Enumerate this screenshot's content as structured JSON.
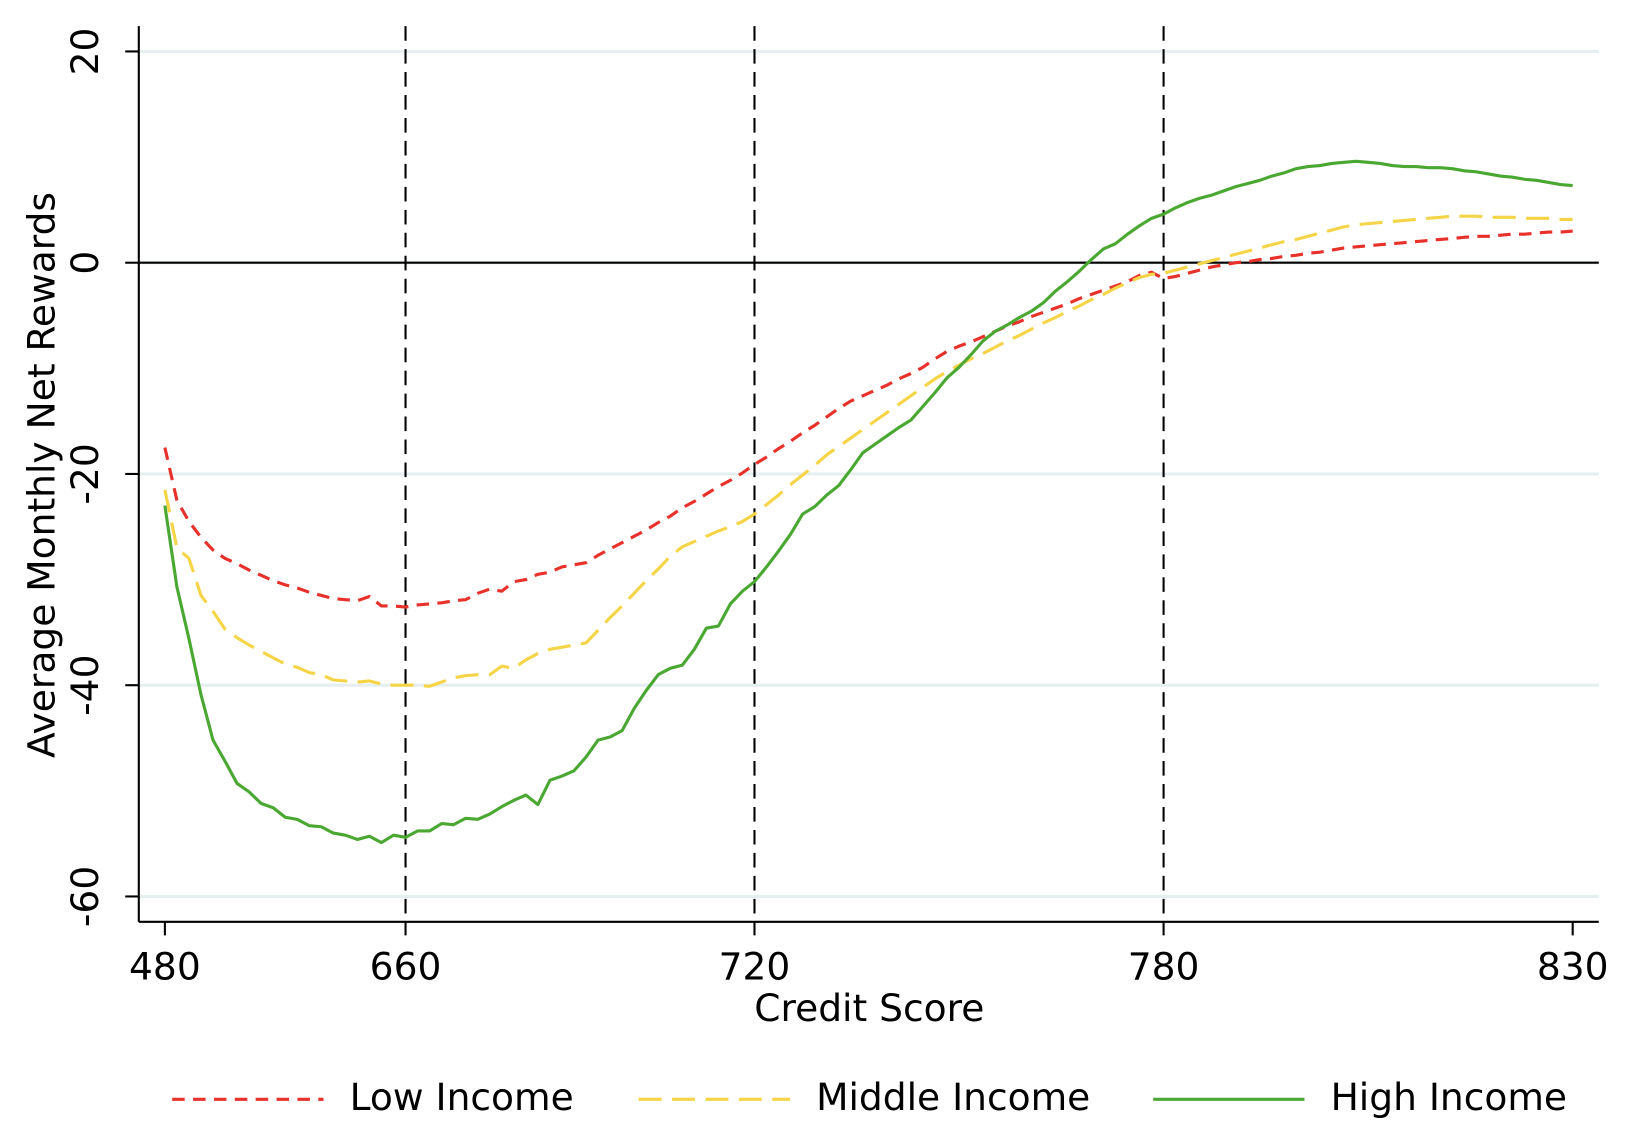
{
  "chart_data": {
    "type": "line",
    "xlabel": "Credit Score",
    "ylabel": "Average Monthly Net Rewards",
    "categories": [
      "480",
      null,
      null,
      null,
      null,
      null,
      null,
      null,
      null,
      null,
      null,
      null,
      null,
      null,
      null,
      null,
      null,
      null,
      null,
      null,
      "660",
      null,
      null,
      null,
      null,
      null,
      null,
      null,
      null,
      null,
      null,
      null,
      null,
      null,
      null,
      null,
      null,
      null,
      null,
      null,
      null,
      null,
      null,
      null,
      null,
      null,
      null,
      null,
      null,
      "720",
      null,
      null,
      null,
      null,
      null,
      null,
      null,
      null,
      null,
      null,
      null,
      null,
      null,
      null,
      null,
      null,
      null,
      null,
      null,
      null,
      null,
      null,
      null,
      null,
      null,
      null,
      null,
      null,
      null,
      null,
      null,
      null,
      null,
      "780",
      null,
      null,
      null,
      null,
      null,
      null,
      null,
      null,
      null,
      null,
      null,
      null,
      null,
      null,
      null,
      null,
      null,
      null,
      null,
      null,
      null,
      null,
      null,
      null,
      null,
      null,
      null,
      null,
      null,
      null,
      null,
      null,
      null,
      "830"
    ],
    "series": [
      {
        "name": "Low Income",
        "color": "#e8312a",
        "dash": "short",
        "values": [
          -17.5,
          -22.5,
          -24.5,
          -26,
          -27.2,
          -28,
          -28.5,
          -29.1,
          -29.6,
          -30.1,
          -30.5,
          -30.8,
          -31.2,
          -31.5,
          -31.8,
          -31.9,
          -32,
          -31.6,
          -32.5,
          -32.5,
          -32.6,
          -32.4,
          -32.3,
          -32.2,
          -32,
          -31.9,
          -31.3,
          -30.9,
          -31.1,
          -30.2,
          -30,
          -29.5,
          -29.3,
          -28.8,
          -28.6,
          -28.4,
          -27.7,
          -27.1,
          -26.5,
          -25.9,
          -25.3,
          -24.6,
          -24,
          -23.2,
          -22.6,
          -21.9,
          -21.2,
          -20.6,
          -19.9,
          -19.1,
          -18.4,
          -17.6,
          -16.9,
          -16.1,
          -15.4,
          -14.6,
          -13.8,
          -13.1,
          -12.6,
          -12.1,
          -11.6,
          -11,
          -10.5,
          -9.9,
          -9.1,
          -8.4,
          -7.9,
          -7.5,
          -7,
          -6.5,
          -6,
          -5.6,
          -5.1,
          -4.7,
          -4.3,
          -3.9,
          -3.4,
          -3,
          -2.6,
          -2.2,
          -1.8,
          -1.2,
          -0.9,
          -1.5,
          -1.3,
          -1,
          -0.7,
          -0.4,
          -0.2,
          0,
          0.1,
          0.3,
          0.4,
          0.6,
          0.7,
          0.9,
          1,
          1.2,
          1.4,
          1.5,
          1.6,
          1.7,
          1.8,
          1.9,
          2,
          2.1,
          2.2,
          2.3,
          2.4,
          2.5,
          2.5,
          2.6,
          2.7,
          2.7,
          2.8,
          2.9,
          2.9,
          3
        ]
      },
      {
        "name": "Middle Income",
        "color": "#f5d547",
        "dash": "long",
        "values": [
          -21.5,
          -27,
          -28,
          -31.5,
          -33,
          -34.7,
          -35.5,
          -36.2,
          -36.8,
          -37.4,
          -38,
          -38.3,
          -38.8,
          -39,
          -39.5,
          -39.6,
          -39.7,
          -39.6,
          -39.9,
          -40,
          -40,
          -40,
          -40.1,
          -39.7,
          -39.3,
          -39.1,
          -39,
          -39,
          -38.2,
          -38.4,
          -37.6,
          -37,
          -36.6,
          -36.4,
          -36.2,
          -36,
          -34.8,
          -33.6,
          -32.5,
          -31.3,
          -30.1,
          -29,
          -27.8,
          -26.9,
          -26.4,
          -25.9,
          -25.4,
          -25,
          -24.5,
          -23.8,
          -22.9,
          -22,
          -21,
          -20.1,
          -19.2,
          -18.2,
          -17.4,
          -16.6,
          -15.8,
          -15,
          -14.2,
          -13.4,
          -12.6,
          -11.8,
          -11,
          -10.3,
          -9.7,
          -9.1,
          -8.6,
          -8,
          -7.4,
          -6.9,
          -6.3,
          -5.7,
          -5.2,
          -4.6,
          -4.1,
          -3.5,
          -3,
          -2.4,
          -1.9,
          -1.4,
          -1.1,
          -1,
          -0.7,
          -0.4,
          -0.1,
          0.2,
          0.5,
          0.8,
          1.1,
          1.4,
          1.7,
          2,
          2.2,
          2.5,
          2.8,
          3.1,
          3.4,
          3.6,
          3.7,
          3.8,
          3.9,
          4,
          4.1,
          4.2,
          4.3,
          4.4,
          4.4,
          4.4,
          4.3,
          4.3,
          4.3,
          4.2,
          4.2,
          4.2,
          4.1,
          4.1
        ]
      },
      {
        "name": "High Income",
        "color": "#4aa832",
        "dash": "solid",
        "values": [
          -23,
          -30.7,
          -35.6,
          -40.9,
          -45.2,
          -47.2,
          -49.3,
          -50.1,
          -51.2,
          -51.6,
          -52.5,
          -52.7,
          -53.3,
          -53.4,
          -54,
          -54.2,
          -54.6,
          -54.3,
          -54.9,
          -54.2,
          -54.4,
          -53.8,
          -53.8,
          -53.1,
          -53.2,
          -52.6,
          -52.7,
          -52.2,
          -51.5,
          -50.9,
          -50.4,
          -51.3,
          -49,
          -48.6,
          -48.1,
          -46.8,
          -45.2,
          -44.9,
          -44.3,
          -42.2,
          -40.5,
          -39,
          -38.4,
          -38.1,
          -36.6,
          -34.6,
          -34.4,
          -32.3,
          -31.1,
          -30.2,
          -28.8,
          -27.3,
          -25.7,
          -23.8,
          -23.1,
          -22,
          -21.1,
          -19.6,
          -18,
          -17.2,
          -16.4,
          -15.6,
          -14.9,
          -13.6,
          -12.3,
          -10.9,
          -9.9,
          -8.7,
          -7.4,
          -6.5,
          -5.9,
          -5.2,
          -4.6,
          -3.8,
          -2.7,
          -1.8,
          -0.8,
          0.3,
          1.3,
          1.8,
          2.7,
          3.5,
          4.2,
          4.6,
          5.2,
          5.7,
          6.1,
          6.4,
          6.8,
          7.2,
          7.5,
          7.8,
          8.2,
          8.5,
          8.9,
          9.1,
          9.2,
          9.4,
          9.5,
          9.6,
          9.5,
          9.4,
          9.2,
          9.1,
          9.1,
          9,
          9,
          8.9,
          8.7,
          8.6,
          8.4,
          8.2,
          8.1,
          7.9,
          7.8,
          7.6,
          7.4,
          7.3
        ]
      }
    ],
    "ylim": [
      -62.4,
      22.4
    ],
    "yticks": [
      -60,
      -40,
      -20,
      0,
      20
    ],
    "grid": true,
    "hline": 0,
    "vlines": [
      "660",
      "720",
      "780"
    ],
    "legend": "bottom"
  }
}
